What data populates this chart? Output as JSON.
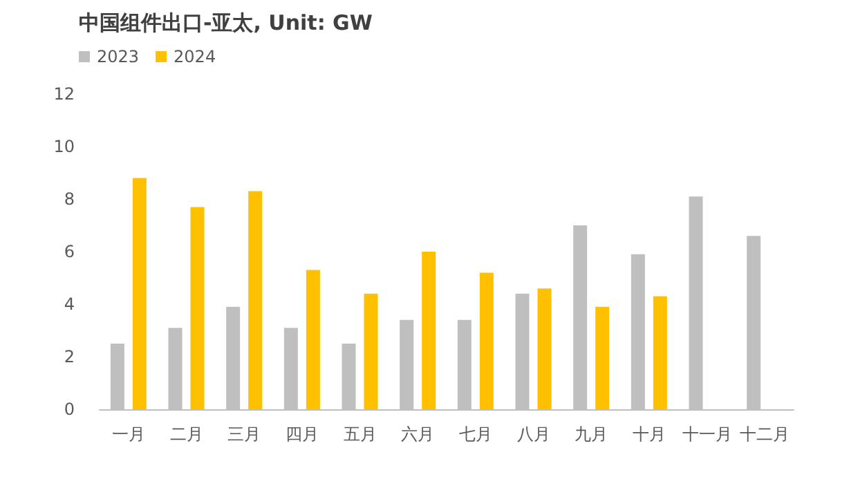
{
  "chart_data": {
    "type": "bar",
    "title": "中国组件出口-亚太, Unit: GW",
    "categories": [
      "一月",
      "二月",
      "三月",
      "四月",
      "五月",
      "六月",
      "七月",
      "八月",
      "九月",
      "十月",
      "十一月",
      "十二月"
    ],
    "series": [
      {
        "name": "2023",
        "color": "#bfbfbf",
        "values": [
          2.5,
          3.1,
          3.9,
          3.1,
          2.5,
          3.4,
          3.4,
          4.4,
          7.0,
          5.9,
          8.1,
          6.6
        ]
      },
      {
        "name": "2024",
        "color": "#ffc000",
        "values": [
          8.8,
          7.7,
          8.3,
          5.3,
          4.4,
          6.0,
          5.2,
          4.6,
          3.9,
          4.3,
          null,
          null
        ]
      }
    ],
    "ylim": [
      0,
      12
    ],
    "yticks": [
      0,
      2,
      4,
      6,
      8,
      10,
      12
    ],
    "grid": false,
    "legend": "top left"
  }
}
